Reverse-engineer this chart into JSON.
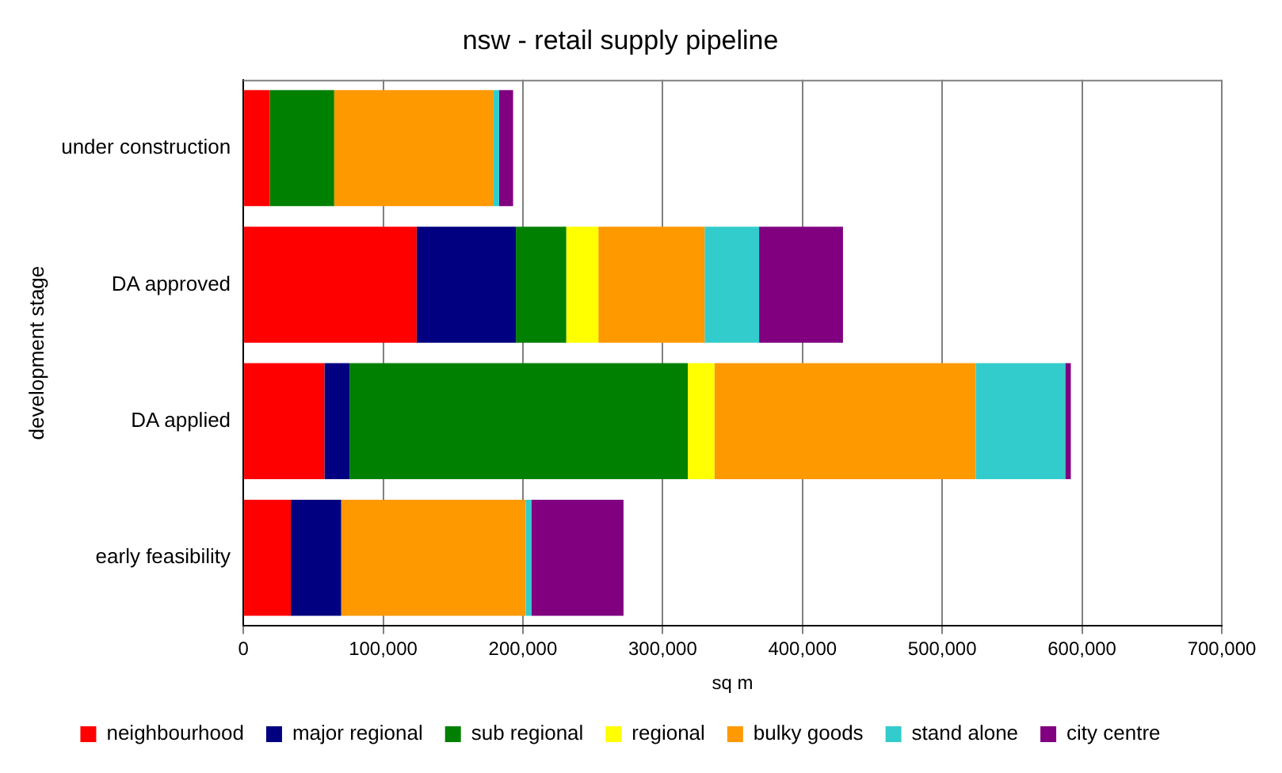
{
  "chart_data": {
    "type": "bar",
    "title": "nsw - retail supply pipeline",
    "xlabel": "sq m",
    "ylabel": "development stage",
    "orientation": "horizontal",
    "stacked": true,
    "categories": [
      "under construction",
      "DA approved",
      "DA applied",
      "early feasibility"
    ],
    "series": [
      {
        "name": "neighbourhood",
        "color": "#ff0000",
        "values": [
          19000,
          124000,
          58000,
          34000
        ]
      },
      {
        "name": "major regional",
        "color": "#000080",
        "values": [
          0,
          71000,
          18000,
          36000
        ]
      },
      {
        "name": "sub regional",
        "color": "#008000",
        "values": [
          46000,
          36000,
          242000,
          0
        ]
      },
      {
        "name": "regional",
        "color": "#ffff00",
        "values": [
          0,
          23000,
          19000,
          0
        ]
      },
      {
        "name": "bulky goods",
        "color": "#ff9900",
        "values": [
          114000,
          76000,
          187000,
          132000
        ]
      },
      {
        "name": "stand alone",
        "color": "#33cccc",
        "values": [
          4000,
          39000,
          64000,
          4000
        ]
      },
      {
        "name": "city centre",
        "color": "#800080",
        "values": [
          10000,
          60000,
          4000,
          66000
        ]
      }
    ],
    "xlim": [
      0,
      700000
    ],
    "xticks": [
      0,
      {
        "value": 100000,
        "label": "100,000"
      },
      {
        "value": 200000,
        "label": "200,000"
      },
      {
        "value": 300000,
        "label": "300,000"
      },
      {
        "value": 400000,
        "label": "400,000"
      },
      {
        "value": 500000,
        "label": "500,000"
      },
      {
        "value": 600000,
        "label": "600,000"
      },
      {
        "value": 700000,
        "label": "700,000"
      }
    ],
    "grid": "x",
    "legend": "bottom"
  }
}
